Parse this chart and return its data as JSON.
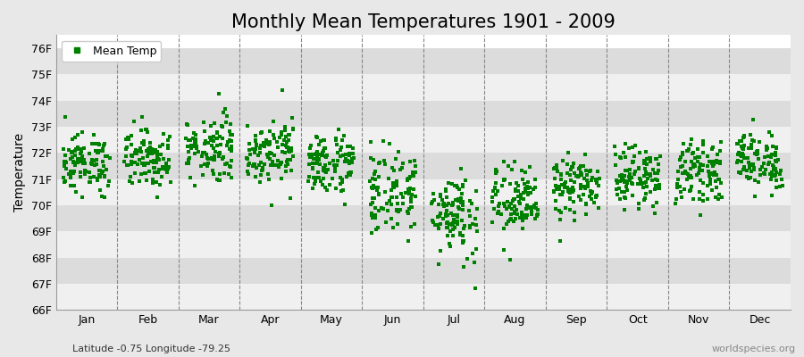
{
  "title": "Monthly Mean Temperatures 1901 - 2009",
  "ylabel": "Temperature",
  "subtitle": "Latitude -0.75 Longitude -79.25",
  "watermark": "worldspecies.org",
  "ylim": [
    66,
    76.5
  ],
  "ytick_labels": [
    "66F",
    "67F",
    "68F",
    "69F",
    "70F",
    "71F",
    "72F",
    "73F",
    "74F",
    "75F",
    "76F"
  ],
  "ytick_values": [
    66,
    67,
    68,
    69,
    70,
    71,
    72,
    73,
    74,
    75,
    76
  ],
  "months": [
    "Jan",
    "Feb",
    "Mar",
    "Apr",
    "May",
    "Jun",
    "Jul",
    "Aug",
    "Sep",
    "Oct",
    "Nov",
    "Dec"
  ],
  "month_positions": [
    1,
    2,
    3,
    4,
    5,
    6,
    7,
    8,
    9,
    10,
    11,
    12
  ],
  "n_years": 109,
  "dot_color": "#008000",
  "dot_size": 6,
  "background_color": "#e8e8e8",
  "plot_bg_color": "#ffffff",
  "band_color_dark": "#dcdcdc",
  "band_color_light": "#f0f0f0",
  "grid_color": "#ffffff",
  "dashed_line_color": "#888888",
  "title_fontsize": 15,
  "axis_fontsize": 10,
  "tick_fontsize": 9,
  "monthly_mean_temps": [
    71.6,
    71.8,
    72.2,
    72.1,
    71.6,
    70.5,
    69.7,
    70.1,
    70.7,
    71.1,
    71.3,
    71.7
  ],
  "monthly_std_temps": [
    0.55,
    0.55,
    0.65,
    0.6,
    0.6,
    0.8,
    0.85,
    0.7,
    0.55,
    0.55,
    0.55,
    0.55
  ]
}
